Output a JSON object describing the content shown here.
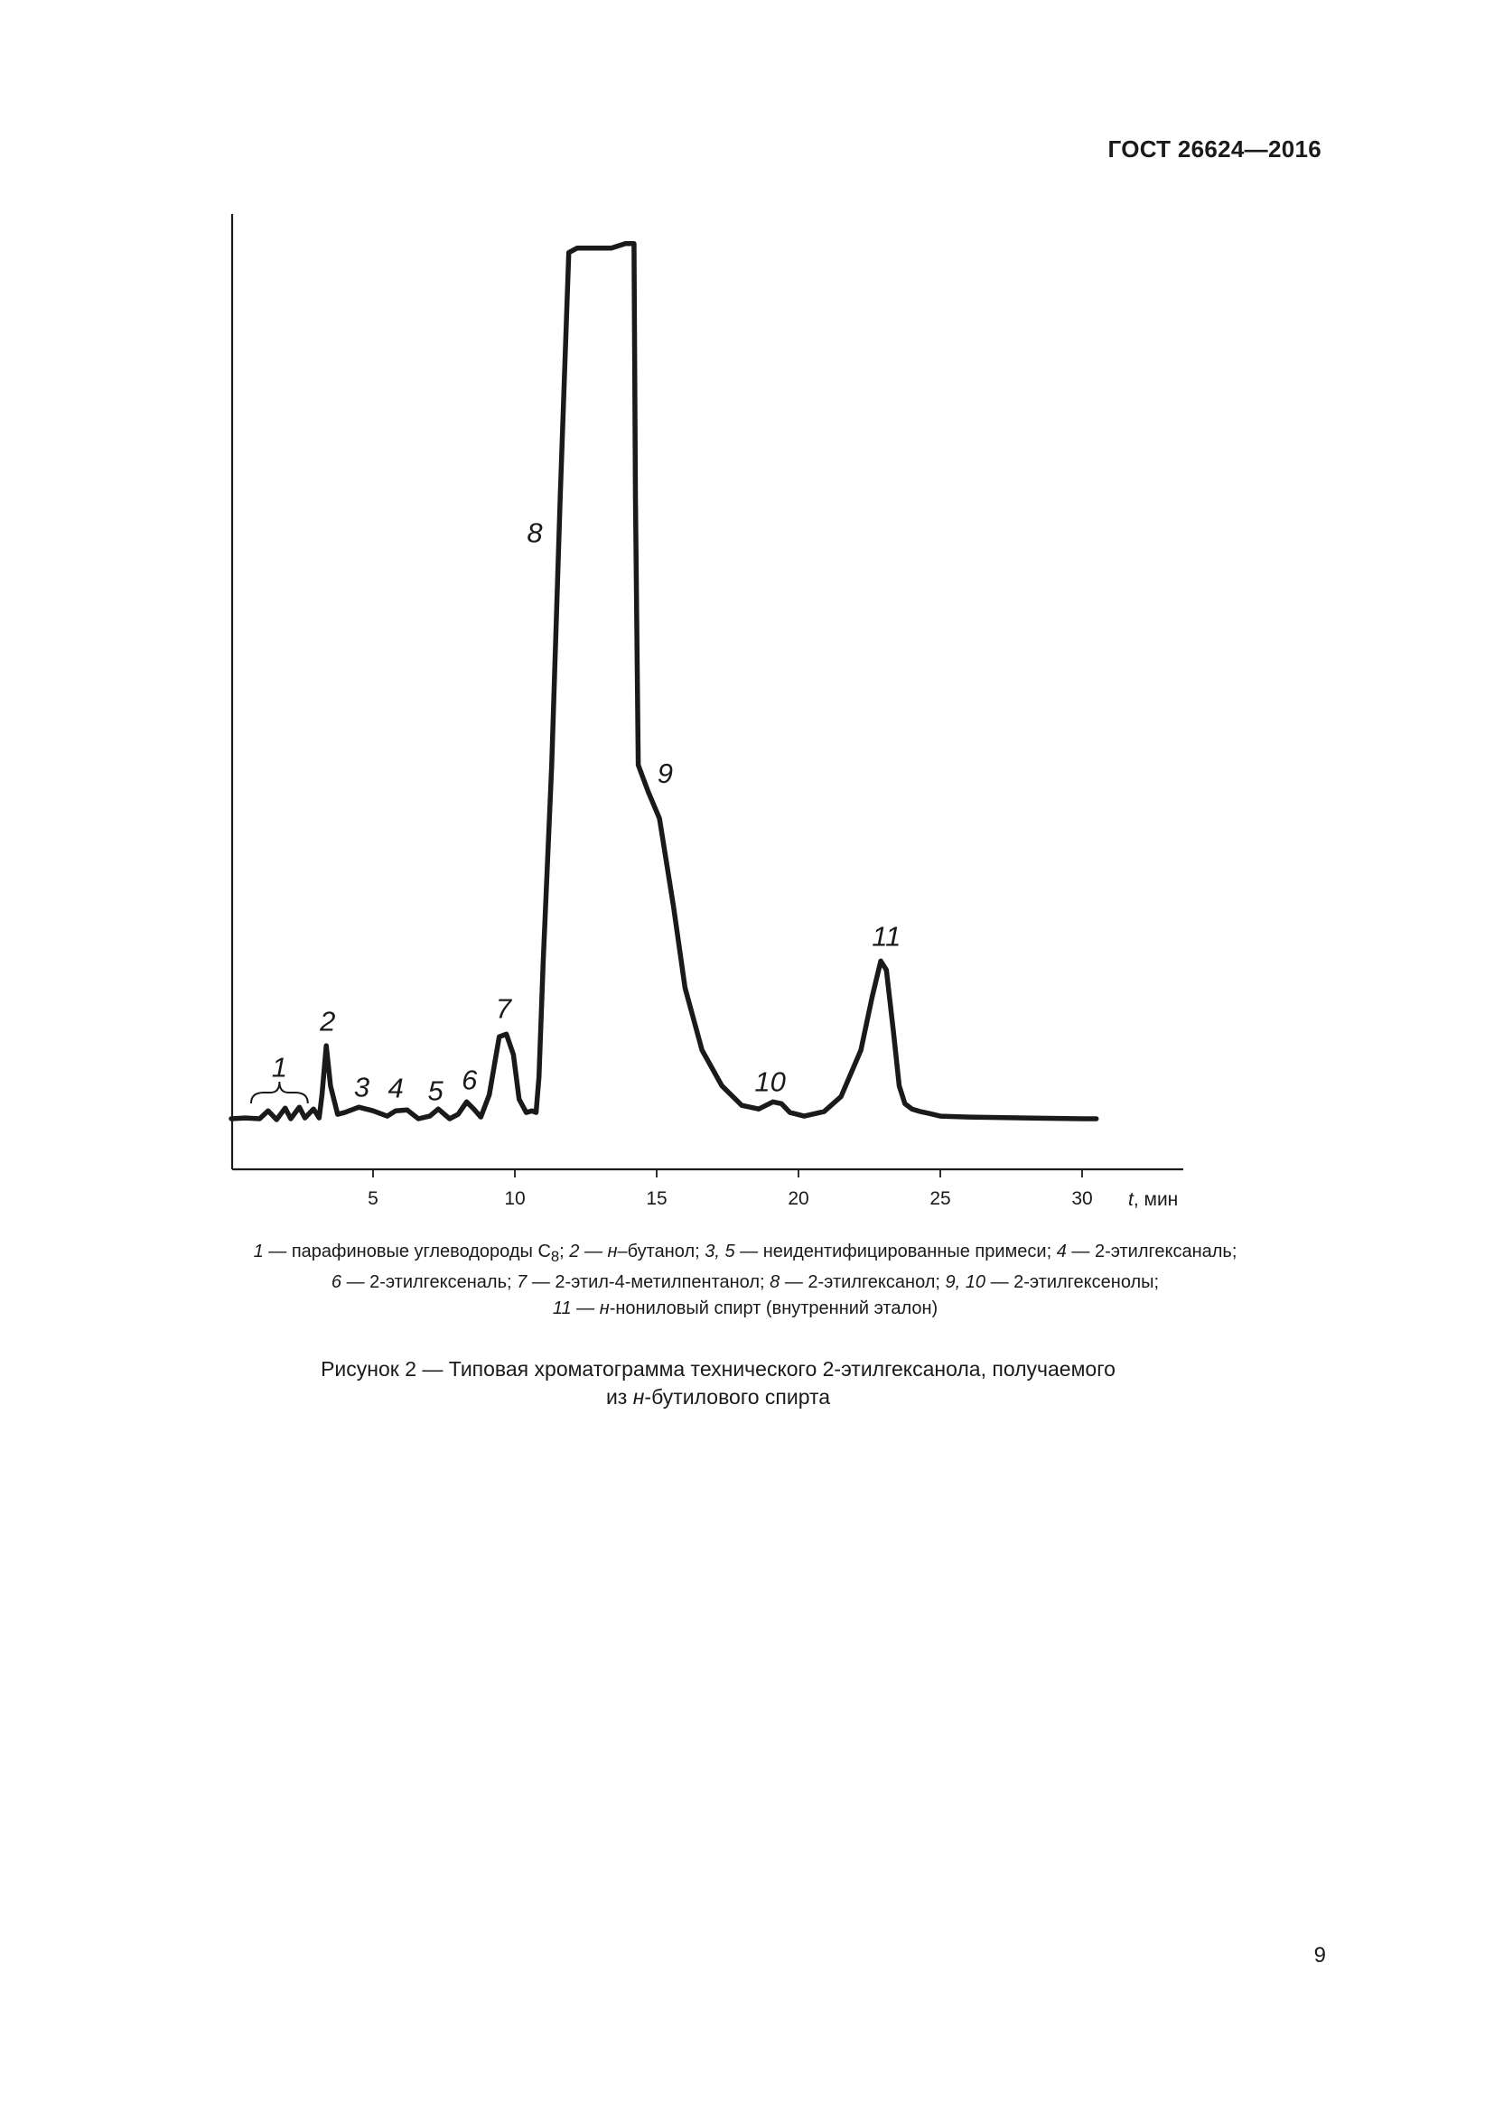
{
  "header": {
    "doc_code": "ГОСТ 26624—2016"
  },
  "chart_data": {
    "type": "line",
    "title": "",
    "xlabel_italic": "t",
    "xlabel_rest": ", мин",
    "ylabel": "",
    "xlim": [
      0,
      33
    ],
    "ylim": [
      0,
      100
    ],
    "x_ticks": [
      5,
      10,
      15,
      20,
      25,
      30
    ],
    "grid": false,
    "series": [
      {
        "x": [
          0,
          0.5,
          1.0,
          1.3,
          1.6,
          1.9,
          2.1,
          2.4,
          2.6,
          2.9,
          3.1,
          3.2,
          3.35,
          3.5,
          3.75,
          4.0,
          4.5,
          5.0,
          5.5,
          5.8,
          6.2,
          6.6,
          7.0,
          7.3,
          7.7,
          8.0,
          8.3,
          8.55,
          8.8,
          9.1,
          9.45,
          9.7,
          9.95,
          10.15,
          10.4,
          10.6,
          10.75,
          10.85,
          11.0,
          11.3,
          11.6,
          11.9,
          12.2,
          12.6,
          13.0,
          13.4,
          13.9,
          14.2,
          14.25,
          14.35,
          14.7,
          15.1,
          15.3,
          15.6,
          16.0,
          16.6,
          17.3,
          18.0,
          18.6,
          19.1,
          19.4,
          19.7,
          20.2,
          20.9,
          21.5,
          22.2,
          22.6,
          22.9,
          23.1,
          23.35,
          23.55,
          23.75,
          24.0,
          24.3,
          24.6,
          25.0,
          26.0,
          28.0,
          30.0,
          30.5
        ],
        "y": [
          0.3,
          0.4,
          0.3,
          1.2,
          0.2,
          1.5,
          0.3,
          1.6,
          0.4,
          1.4,
          0.4,
          3.0,
          8.5,
          4.0,
          0.8,
          1.0,
          1.6,
          1.2,
          0.6,
          1.2,
          1.3,
          0.3,
          0.6,
          1.4,
          0.3,
          0.8,
          2.2,
          1.4,
          0.5,
          3.0,
          9.5,
          9.8,
          7.5,
          2.5,
          1.0,
          1.2,
          1.0,
          5.0,
          18.0,
          40.0,
          70.0,
          97.5,
          98.0,
          98.0,
          98.0,
          98.0,
          98.5,
          98.5,
          70.0,
          40.0,
          37.0,
          34.0,
          30.0,
          24.0,
          15.0,
          8.0,
          4.0,
          1.8,
          1.4,
          2.2,
          2.0,
          1.0,
          0.6,
          1.1,
          2.8,
          8.0,
          14.0,
          18.0,
          17.0,
          10.0,
          4.0,
          2.0,
          1.4,
          1.1,
          0.9,
          0.6,
          0.5,
          0.4,
          0.3,
          0.3
        ]
      }
    ],
    "peak_labels": [
      {
        "text": "1",
        "x": 1.7,
        "y": 5.0
      },
      {
        "text": "2",
        "x": 3.4,
        "y": 10.2
      },
      {
        "text": "3",
        "x": 4.6,
        "y": 2.8
      },
      {
        "text": "4",
        "x": 5.8,
        "y": 2.7
      },
      {
        "text": "5",
        "x": 7.2,
        "y": 2.4
      },
      {
        "text": "6",
        "x": 8.4,
        "y": 3.6
      },
      {
        "text": "7",
        "x": 9.6,
        "y": 11.6
      },
      {
        "text": "8",
        "x": 10.7,
        "y": 65.0
      },
      {
        "text": "9",
        "x": 15.3,
        "y": 38.0
      },
      {
        "text": "10",
        "x": 19.0,
        "y": 3.4
      },
      {
        "text": "11",
        "x": 23.1,
        "y": 19.7
      }
    ],
    "brace_range": [
      0.7,
      2.7
    ]
  },
  "legend": {
    "l1_a": "1",
    "l1_b": " — парафиновые углеводороды С",
    "l1_sub": "8",
    "l1_c": "; ",
    "l1_d": "2 — н",
    "l1_e": "–бутанол; ",
    "l1_f": "3, 5",
    "l1_g": " — неидентифицированные примеси; ",
    "l1_h": "4",
    "l1_i": " — 2-этилгексаналь;",
    "l2_a": "6",
    "l2_b": " — 2-этилгексеналь; ",
    "l2_c": "7",
    "l2_d": " — 2-этил-4-метилпентанол; ",
    "l2_e": "8",
    "l2_f": " — 2-этилгексанол; ",
    "l2_g": "9, 10",
    "l2_h": " — 2-этилгексенолы;",
    "l3_a": "11",
    "l3_b": " — ",
    "l3_c": "н",
    "l3_d": "-нониловый спирт (внутренний эталон)"
  },
  "caption": {
    "line1": "Рисунок 2 — Типовая хроматограмма технического 2-этилгексанола, получаемого",
    "line2_a": "из ",
    "line2_b": "н",
    "line2_c": "-бутилового спирта"
  },
  "page_number": "9"
}
